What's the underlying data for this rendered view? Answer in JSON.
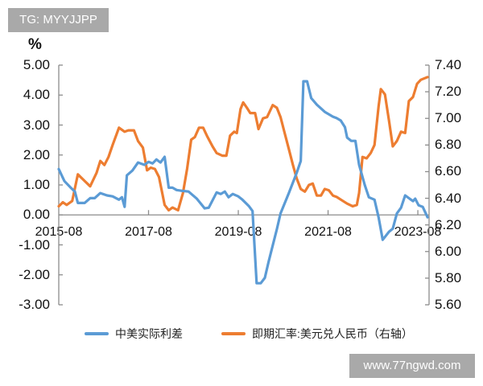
{
  "watermarks": {
    "top": "TG: MYYJJPP",
    "bottom": "www.77ngwd.com"
  },
  "chart_data": {
    "type": "line",
    "title": "",
    "left_axis": {
      "unit": "%",
      "ticks": [
        "5.00",
        "4.00",
        "3.00",
        "2.00",
        "1.00",
        "0.00",
        "-1.00",
        "-2.00",
        "-3.00"
      ],
      "range": [
        -3,
        5
      ]
    },
    "right_axis": {
      "ticks": [
        "7.40",
        "7.20",
        "7.00",
        "6.80",
        "6.60",
        "6.40",
        "6.20",
        "6.00",
        "5.80",
        "5.60"
      ],
      "range": [
        5.6,
        7.4
      ]
    },
    "x_ticks": [
      "2015-08",
      "2017-08",
      "2019-08",
      "2021-08",
      "2023-08"
    ],
    "x_range_months": [
      0,
      99
    ],
    "x_start": "2015-08",
    "legend_position": "bottom",
    "grid": false,
    "series": [
      {
        "name": "中美实际利差",
        "axis": "left",
        "color": "#5b9bd5",
        "points_month_value": [
          [
            0,
            1.53
          ],
          [
            1.5,
            1.13
          ],
          [
            3.2,
            0.91
          ],
          [
            4.3,
            0.78
          ],
          [
            5.1,
            0.4
          ],
          [
            6.9,
            0.4
          ],
          [
            8.4,
            0.56
          ],
          [
            9.6,
            0.56
          ],
          [
            11.1,
            0.73
          ],
          [
            12.9,
            0.65
          ],
          [
            14.4,
            0.62
          ],
          [
            16.1,
            0.51
          ],
          [
            16.9,
            0.59
          ],
          [
            17.6,
            0.27
          ],
          [
            18.2,
            1.32
          ],
          [
            19.7,
            1.48
          ],
          [
            21.2,
            1.75
          ],
          [
            22.9,
            1.67
          ],
          [
            24.0,
            1.77
          ],
          [
            25.1,
            1.72
          ],
          [
            26.1,
            1.85
          ],
          [
            27.2,
            1.75
          ],
          [
            28.3,
            1.94
          ],
          [
            29.4,
            0.91
          ],
          [
            30.4,
            0.91
          ],
          [
            31.5,
            0.83
          ],
          [
            32.6,
            0.81
          ],
          [
            34.7,
            0.78
          ],
          [
            36.9,
            0.54
          ],
          [
            39.0,
            0.22
          ],
          [
            40.1,
            0.24
          ],
          [
            42.2,
            0.75
          ],
          [
            43.3,
            0.7
          ],
          [
            44.4,
            0.78
          ],
          [
            45.4,
            0.59
          ],
          [
            46.5,
            0.7
          ],
          [
            48.0,
            0.62
          ],
          [
            49.1,
            0.51
          ],
          [
            50.8,
            0.3
          ],
          [
            51.8,
            0.13
          ],
          [
            52.9,
            -2.28
          ],
          [
            54.0,
            -2.28
          ],
          [
            55.1,
            -2.1
          ],
          [
            56.1,
            -1.56
          ],
          [
            57.2,
            -1.02
          ],
          [
            58.3,
            -0.48
          ],
          [
            59.3,
            0.05
          ],
          [
            61.5,
            0.73
          ],
          [
            63.6,
            1.4
          ],
          [
            64.7,
            1.8
          ],
          [
            65.4,
            4.46
          ],
          [
            66.4,
            4.46
          ],
          [
            67.5,
            3.9
          ],
          [
            69.0,
            3.68
          ],
          [
            71.1,
            3.44
          ],
          [
            73.3,
            3.28
          ],
          [
            74.3,
            3.23
          ],
          [
            75.4,
            3.15
          ],
          [
            76.5,
            2.93
          ],
          [
            77.1,
            2.58
          ],
          [
            78.2,
            2.47
          ],
          [
            79.3,
            2.47
          ],
          [
            80.3,
            1.67
          ],
          [
            81.8,
            1.0
          ],
          [
            82.9,
            0.59
          ],
          [
            84.4,
            0.51
          ],
          [
            85.5,
            -0.08
          ],
          [
            86.6,
            -0.83
          ],
          [
            88.3,
            -0.56
          ],
          [
            89.3,
            -0.46
          ],
          [
            90.4,
            0.05
          ],
          [
            91.5,
            0.24
          ],
          [
            92.6,
            0.65
          ],
          [
            93.6,
            0.56
          ],
          [
            94.7,
            0.46
          ],
          [
            95.3,
            0.54
          ],
          [
            96.2,
            0.32
          ],
          [
            97.3,
            0.27
          ],
          [
            98.6,
            -0.08
          ]
        ]
      },
      {
        "name": "即期汇率:美元兑人民币（右轴）",
        "axis": "right",
        "color": "#ed7d31",
        "points_month_value": [
          [
            0,
            6.34
          ],
          [
            1.1,
            6.37
          ],
          [
            2.1,
            6.35
          ],
          [
            3.6,
            6.38
          ],
          [
            5.1,
            6.58
          ],
          [
            6.9,
            6.53
          ],
          [
            8.4,
            6.49
          ],
          [
            10.1,
            6.59
          ],
          [
            11.1,
            6.68
          ],
          [
            12.2,
            6.65
          ],
          [
            13.3,
            6.71
          ],
          [
            14.4,
            6.8
          ],
          [
            16.1,
            6.93
          ],
          [
            17.6,
            6.9
          ],
          [
            18.6,
            6.91
          ],
          [
            20.1,
            6.91
          ],
          [
            21.2,
            6.83
          ],
          [
            22.5,
            6.78
          ],
          [
            23.6,
            6.61
          ],
          [
            24.6,
            6.63
          ],
          [
            25.7,
            6.62
          ],
          [
            26.8,
            6.56
          ],
          [
            28.3,
            6.35
          ],
          [
            29.4,
            6.31
          ],
          [
            30.4,
            6.33
          ],
          [
            31.9,
            6.31
          ],
          [
            33.2,
            6.44
          ],
          [
            34.3,
            6.62
          ],
          [
            35.4,
            6.84
          ],
          [
            36.4,
            6.86
          ],
          [
            37.5,
            6.93
          ],
          [
            38.6,
            6.93
          ],
          [
            39.6,
            6.87
          ],
          [
            41.1,
            6.79
          ],
          [
            42.2,
            6.74
          ],
          [
            43.7,
            6.72
          ],
          [
            44.8,
            6.72
          ],
          [
            45.8,
            6.87
          ],
          [
            46.9,
            6.9
          ],
          [
            47.6,
            6.89
          ],
          [
            48.6,
            7.07
          ],
          [
            49.3,
            7.12
          ],
          [
            50.3,
            7.08
          ],
          [
            51.2,
            7.04
          ],
          [
            52.5,
            7.04
          ],
          [
            53.4,
            6.92
          ],
          [
            54.6,
            7.0
          ],
          [
            55.7,
            7.01
          ],
          [
            57.2,
            7.1
          ],
          [
            58.3,
            7.08
          ],
          [
            59.3,
            7.01
          ],
          [
            60.4,
            6.89
          ],
          [
            61.5,
            6.77
          ],
          [
            62.6,
            6.65
          ],
          [
            63.6,
            6.55
          ],
          [
            64.7,
            6.47
          ],
          [
            65.8,
            6.45
          ],
          [
            66.9,
            6.5
          ],
          [
            67.9,
            6.51
          ],
          [
            69.0,
            6.42
          ],
          [
            70.1,
            6.42
          ],
          [
            71.1,
            6.47
          ],
          [
            72.2,
            6.46
          ],
          [
            73.3,
            6.42
          ],
          [
            74.3,
            6.41
          ],
          [
            75.4,
            6.39
          ],
          [
            77.1,
            6.36
          ],
          [
            78.6,
            6.34
          ],
          [
            79.7,
            6.35
          ],
          [
            80.3,
            6.44
          ],
          [
            81.2,
            6.71
          ],
          [
            82.3,
            6.7
          ],
          [
            83.4,
            6.74
          ],
          [
            84.4,
            6.8
          ],
          [
            85.5,
            7.09
          ],
          [
            86.1,
            7.22
          ],
          [
            87.2,
            7.18
          ],
          [
            88.3,
            6.98
          ],
          [
            89.3,
            6.79
          ],
          [
            90.4,
            6.83
          ],
          [
            91.5,
            6.9
          ],
          [
            92.6,
            6.89
          ],
          [
            93.6,
            7.13
          ],
          [
            94.7,
            7.16
          ],
          [
            95.8,
            7.26
          ],
          [
            96.8,
            7.29
          ],
          [
            98.6,
            7.31
          ]
        ]
      }
    ]
  },
  "legend": {
    "items": [
      {
        "label": "中美实际利差",
        "color": "#5b9bd5"
      },
      {
        "label": "即期汇率:美元兑人民币（右轴）",
        "color": "#ed7d31"
      }
    ]
  }
}
